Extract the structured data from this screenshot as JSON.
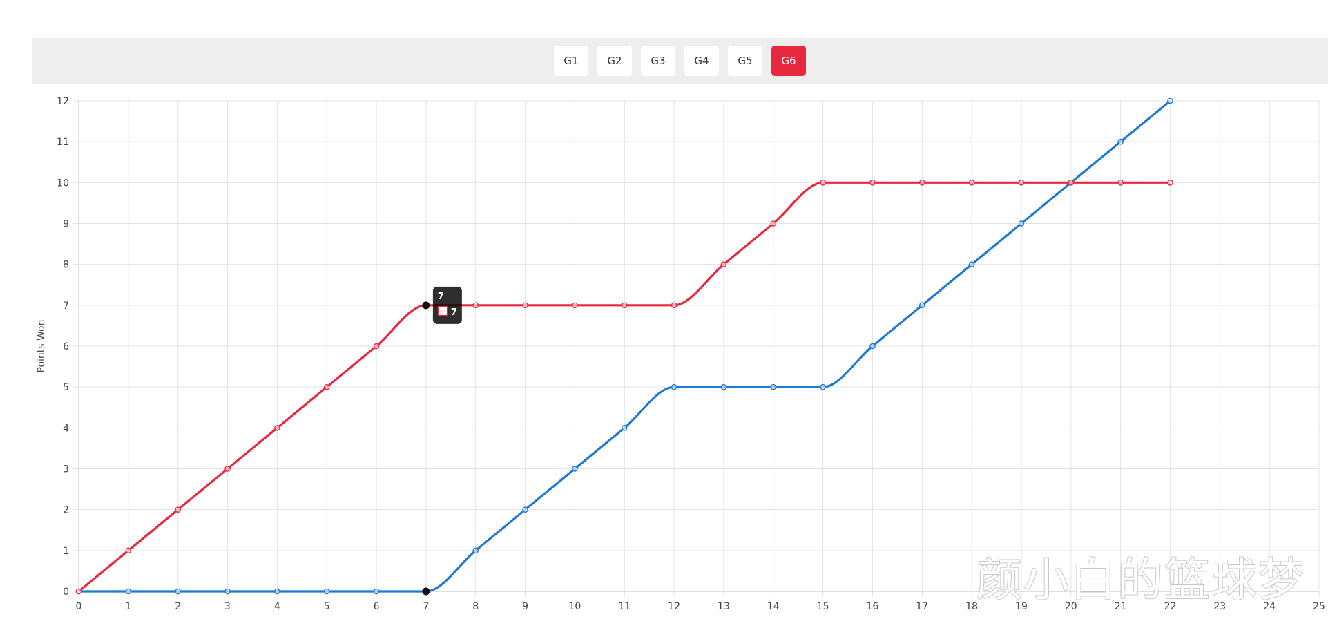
{
  "tabs": [
    {
      "label": "G1",
      "active": false
    },
    {
      "label": "G2",
      "active": false
    },
    {
      "label": "G3",
      "active": false
    },
    {
      "label": "G4",
      "active": false
    },
    {
      "label": "G5",
      "active": false
    },
    {
      "label": "G6",
      "active": true
    }
  ],
  "colors": {
    "accent": "#e8283f",
    "series_red": "#e8283f",
    "series_blue": "#1f78d1",
    "tab_bar_bg": "#eeeeee"
  },
  "chart_data": {
    "type": "line",
    "ylabel": "Points Won",
    "xlabel": "",
    "x": [
      0,
      1,
      2,
      3,
      4,
      5,
      6,
      7,
      8,
      9,
      10,
      11,
      12,
      13,
      14,
      15,
      16,
      17,
      18,
      19,
      20,
      21,
      22
    ],
    "xticks": [
      0,
      1,
      2,
      3,
      4,
      5,
      6,
      7,
      8,
      9,
      10,
      11,
      12,
      13,
      14,
      15,
      16,
      17,
      18,
      19,
      20,
      21,
      22,
      23,
      24,
      25
    ],
    "yticks": [
      0,
      1,
      2,
      3,
      4,
      5,
      6,
      7,
      8,
      9,
      10,
      11,
      12
    ],
    "xlim": [
      0,
      25
    ],
    "ylim": [
      0,
      12
    ],
    "grid": true,
    "series": [
      {
        "color": "#e8283f",
        "values": [
          0,
          1,
          2,
          3,
          4,
          5,
          6,
          7,
          7,
          7,
          7,
          7,
          7,
          8,
          9,
          10,
          10,
          10,
          10,
          10,
          10,
          10,
          10
        ]
      },
      {
        "color": "#1f78d1",
        "values": [
          0,
          0,
          0,
          0,
          0,
          0,
          0,
          0,
          1,
          2,
          3,
          4,
          5,
          5,
          5,
          5,
          6,
          7,
          8,
          9,
          10,
          11,
          12
        ]
      }
    ],
    "tooltip": {
      "title": "7",
      "value": "7",
      "x": 7,
      "y": 7
    }
  },
  "watermark": "颜小白的篮球梦"
}
